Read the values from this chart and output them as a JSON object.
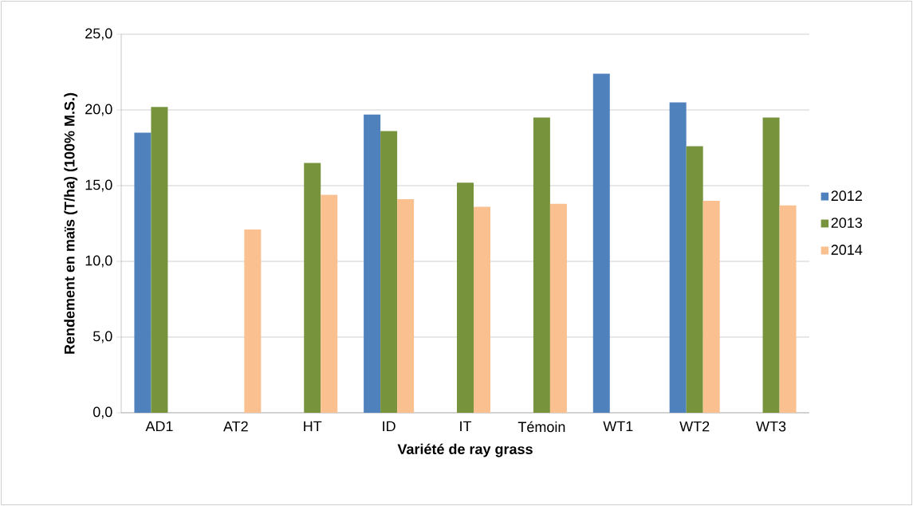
{
  "chart_data": {
    "type": "bar",
    "ylabel": "Rendement en maïs (T/ha) (100% M.S.)",
    "xlabel": "Variété de ray grass",
    "categories": [
      "AD1",
      "AT2",
      "HT",
      "ID",
      "IT",
      "Témoin",
      "WT1",
      "WT2",
      "WT3"
    ],
    "series": [
      {
        "name": "2012",
        "color": "#4f81bd",
        "values": [
          18.5,
          null,
          null,
          19.7,
          null,
          null,
          22.4,
          20.5,
          null
        ]
      },
      {
        "name": "2013",
        "color": "#77933c",
        "values": [
          20.2,
          null,
          16.5,
          18.6,
          15.2,
          19.5,
          null,
          17.6,
          19.5
        ]
      },
      {
        "name": "2014",
        "color": "#fac090",
        "values": [
          null,
          12.1,
          14.4,
          14.1,
          13.6,
          13.8,
          null,
          14.0,
          13.7
        ]
      }
    ],
    "ylim": [
      0,
      25
    ],
    "yticks": [
      {
        "value": 0,
        "label": "0,0"
      },
      {
        "value": 5,
        "label": "5,0"
      },
      {
        "value": 10,
        "label": "10,0"
      },
      {
        "value": 15,
        "label": "15,0"
      },
      {
        "value": 20,
        "label": "20,0"
      },
      {
        "value": 25,
        "label": "25,0"
      }
    ],
    "grid": "y",
    "legend": "right"
  }
}
